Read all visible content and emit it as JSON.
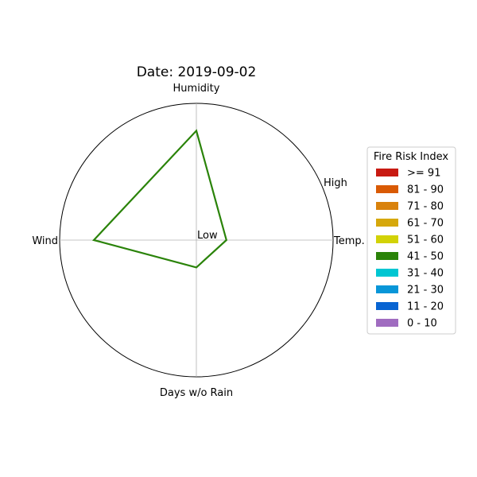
{
  "chart_data": {
    "type": "radar",
    "title": "Date: 2019-09-02",
    "axes": [
      "Temp.",
      "Humidity",
      "Wind",
      "Days w/o Rain"
    ],
    "axis_angles_deg": [
      0,
      90,
      180,
      270
    ],
    "radial_labels": {
      "inner": "Low",
      "outer": "High"
    },
    "rlim": [
      0,
      1
    ],
    "values": [
      0.22,
      0.8,
      0.75,
      0.2
    ],
    "series_color": "#2a8309",
    "legend": {
      "title": "Fire Risk Index",
      "placement": "right",
      "entries": [
        {
          "label": ">= 91",
          "color": "#c81a12"
        },
        {
          "label": "81 - 90",
          "color": "#d95a04"
        },
        {
          "label": "71 - 80",
          "color": "#d9820c"
        },
        {
          "label": "61 - 70",
          "color": "#d6a80c"
        },
        {
          "label": "51 - 60",
          "color": "#d2d206"
        },
        {
          "label": "41 - 50",
          "color": "#2a8309"
        },
        {
          "label": "31 - 40",
          "color": "#00c6d2"
        },
        {
          "label": "21 - 30",
          "color": "#0896d8"
        },
        {
          "label": "11 - 20",
          "color": "#0864d2"
        },
        {
          "label": "0 - 10",
          "color": "#a06cc0"
        }
      ]
    }
  }
}
